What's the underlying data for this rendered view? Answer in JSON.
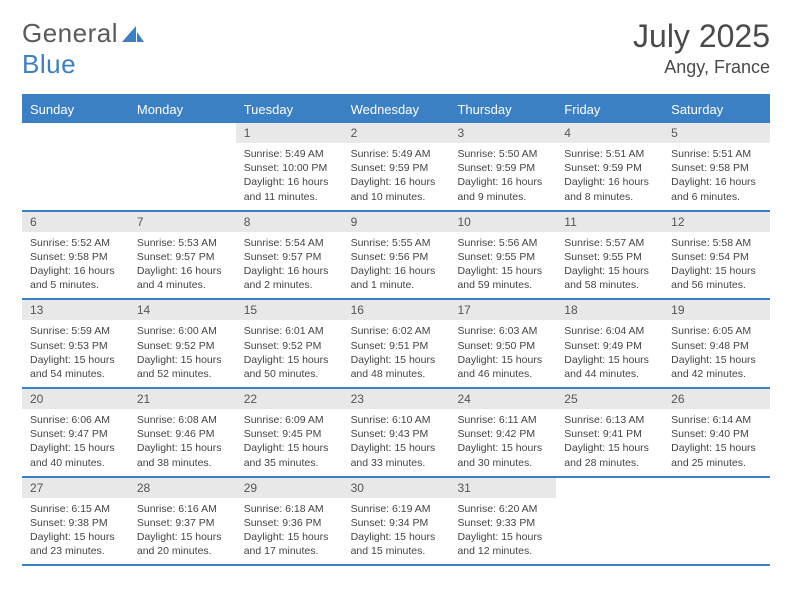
{
  "logo": {
    "word1": "General",
    "word2": "Blue"
  },
  "title": "July 2025",
  "location": "Angy, France",
  "colors": {
    "accent": "#3b7fc4",
    "header_bg": "#3b7fc4",
    "header_text": "#ffffff",
    "daynum_bg": "#e8e8e8",
    "daynum_text": "#555555",
    "body_text": "#444444",
    "page_bg": "#ffffff",
    "title_text": "#4a4a4a"
  },
  "typography": {
    "title_fontsize": 32,
    "location_fontsize": 18,
    "header_fontsize": 13,
    "cell_fontsize": 10.5
  },
  "day_headers": [
    "Sunday",
    "Monday",
    "Tuesday",
    "Wednesday",
    "Thursday",
    "Friday",
    "Saturday"
  ],
  "weeks": [
    [
      {
        "day": "",
        "sunrise": "",
        "sunset": "",
        "daylight": ""
      },
      {
        "day": "",
        "sunrise": "",
        "sunset": "",
        "daylight": ""
      },
      {
        "day": "1",
        "sunrise": "Sunrise: 5:49 AM",
        "sunset": "Sunset: 10:00 PM",
        "daylight": "Daylight: 16 hours and 11 minutes."
      },
      {
        "day": "2",
        "sunrise": "Sunrise: 5:49 AM",
        "sunset": "Sunset: 9:59 PM",
        "daylight": "Daylight: 16 hours and 10 minutes."
      },
      {
        "day": "3",
        "sunrise": "Sunrise: 5:50 AM",
        "sunset": "Sunset: 9:59 PM",
        "daylight": "Daylight: 16 hours and 9 minutes."
      },
      {
        "day": "4",
        "sunrise": "Sunrise: 5:51 AM",
        "sunset": "Sunset: 9:59 PM",
        "daylight": "Daylight: 16 hours and 8 minutes."
      },
      {
        "day": "5",
        "sunrise": "Sunrise: 5:51 AM",
        "sunset": "Sunset: 9:58 PM",
        "daylight": "Daylight: 16 hours and 6 minutes."
      }
    ],
    [
      {
        "day": "6",
        "sunrise": "Sunrise: 5:52 AM",
        "sunset": "Sunset: 9:58 PM",
        "daylight": "Daylight: 16 hours and 5 minutes."
      },
      {
        "day": "7",
        "sunrise": "Sunrise: 5:53 AM",
        "sunset": "Sunset: 9:57 PM",
        "daylight": "Daylight: 16 hours and 4 minutes."
      },
      {
        "day": "8",
        "sunrise": "Sunrise: 5:54 AM",
        "sunset": "Sunset: 9:57 PM",
        "daylight": "Daylight: 16 hours and 2 minutes."
      },
      {
        "day": "9",
        "sunrise": "Sunrise: 5:55 AM",
        "sunset": "Sunset: 9:56 PM",
        "daylight": "Daylight: 16 hours and 1 minute."
      },
      {
        "day": "10",
        "sunrise": "Sunrise: 5:56 AM",
        "sunset": "Sunset: 9:55 PM",
        "daylight": "Daylight: 15 hours and 59 minutes."
      },
      {
        "day": "11",
        "sunrise": "Sunrise: 5:57 AM",
        "sunset": "Sunset: 9:55 PM",
        "daylight": "Daylight: 15 hours and 58 minutes."
      },
      {
        "day": "12",
        "sunrise": "Sunrise: 5:58 AM",
        "sunset": "Sunset: 9:54 PM",
        "daylight": "Daylight: 15 hours and 56 minutes."
      }
    ],
    [
      {
        "day": "13",
        "sunrise": "Sunrise: 5:59 AM",
        "sunset": "Sunset: 9:53 PM",
        "daylight": "Daylight: 15 hours and 54 minutes."
      },
      {
        "day": "14",
        "sunrise": "Sunrise: 6:00 AM",
        "sunset": "Sunset: 9:52 PM",
        "daylight": "Daylight: 15 hours and 52 minutes."
      },
      {
        "day": "15",
        "sunrise": "Sunrise: 6:01 AM",
        "sunset": "Sunset: 9:52 PM",
        "daylight": "Daylight: 15 hours and 50 minutes."
      },
      {
        "day": "16",
        "sunrise": "Sunrise: 6:02 AM",
        "sunset": "Sunset: 9:51 PM",
        "daylight": "Daylight: 15 hours and 48 minutes."
      },
      {
        "day": "17",
        "sunrise": "Sunrise: 6:03 AM",
        "sunset": "Sunset: 9:50 PM",
        "daylight": "Daylight: 15 hours and 46 minutes."
      },
      {
        "day": "18",
        "sunrise": "Sunrise: 6:04 AM",
        "sunset": "Sunset: 9:49 PM",
        "daylight": "Daylight: 15 hours and 44 minutes."
      },
      {
        "day": "19",
        "sunrise": "Sunrise: 6:05 AM",
        "sunset": "Sunset: 9:48 PM",
        "daylight": "Daylight: 15 hours and 42 minutes."
      }
    ],
    [
      {
        "day": "20",
        "sunrise": "Sunrise: 6:06 AM",
        "sunset": "Sunset: 9:47 PM",
        "daylight": "Daylight: 15 hours and 40 minutes."
      },
      {
        "day": "21",
        "sunrise": "Sunrise: 6:08 AM",
        "sunset": "Sunset: 9:46 PM",
        "daylight": "Daylight: 15 hours and 38 minutes."
      },
      {
        "day": "22",
        "sunrise": "Sunrise: 6:09 AM",
        "sunset": "Sunset: 9:45 PM",
        "daylight": "Daylight: 15 hours and 35 minutes."
      },
      {
        "day": "23",
        "sunrise": "Sunrise: 6:10 AM",
        "sunset": "Sunset: 9:43 PM",
        "daylight": "Daylight: 15 hours and 33 minutes."
      },
      {
        "day": "24",
        "sunrise": "Sunrise: 6:11 AM",
        "sunset": "Sunset: 9:42 PM",
        "daylight": "Daylight: 15 hours and 30 minutes."
      },
      {
        "day": "25",
        "sunrise": "Sunrise: 6:13 AM",
        "sunset": "Sunset: 9:41 PM",
        "daylight": "Daylight: 15 hours and 28 minutes."
      },
      {
        "day": "26",
        "sunrise": "Sunrise: 6:14 AM",
        "sunset": "Sunset: 9:40 PM",
        "daylight": "Daylight: 15 hours and 25 minutes."
      }
    ],
    [
      {
        "day": "27",
        "sunrise": "Sunrise: 6:15 AM",
        "sunset": "Sunset: 9:38 PM",
        "daylight": "Daylight: 15 hours and 23 minutes."
      },
      {
        "day": "28",
        "sunrise": "Sunrise: 6:16 AM",
        "sunset": "Sunset: 9:37 PM",
        "daylight": "Daylight: 15 hours and 20 minutes."
      },
      {
        "day": "29",
        "sunrise": "Sunrise: 6:18 AM",
        "sunset": "Sunset: 9:36 PM",
        "daylight": "Daylight: 15 hours and 17 minutes."
      },
      {
        "day": "30",
        "sunrise": "Sunrise: 6:19 AM",
        "sunset": "Sunset: 9:34 PM",
        "daylight": "Daylight: 15 hours and 15 minutes."
      },
      {
        "day": "31",
        "sunrise": "Sunrise: 6:20 AM",
        "sunset": "Sunset: 9:33 PM",
        "daylight": "Daylight: 15 hours and 12 minutes."
      },
      {
        "day": "",
        "sunrise": "",
        "sunset": "",
        "daylight": ""
      },
      {
        "day": "",
        "sunrise": "",
        "sunset": "",
        "daylight": ""
      }
    ]
  ]
}
